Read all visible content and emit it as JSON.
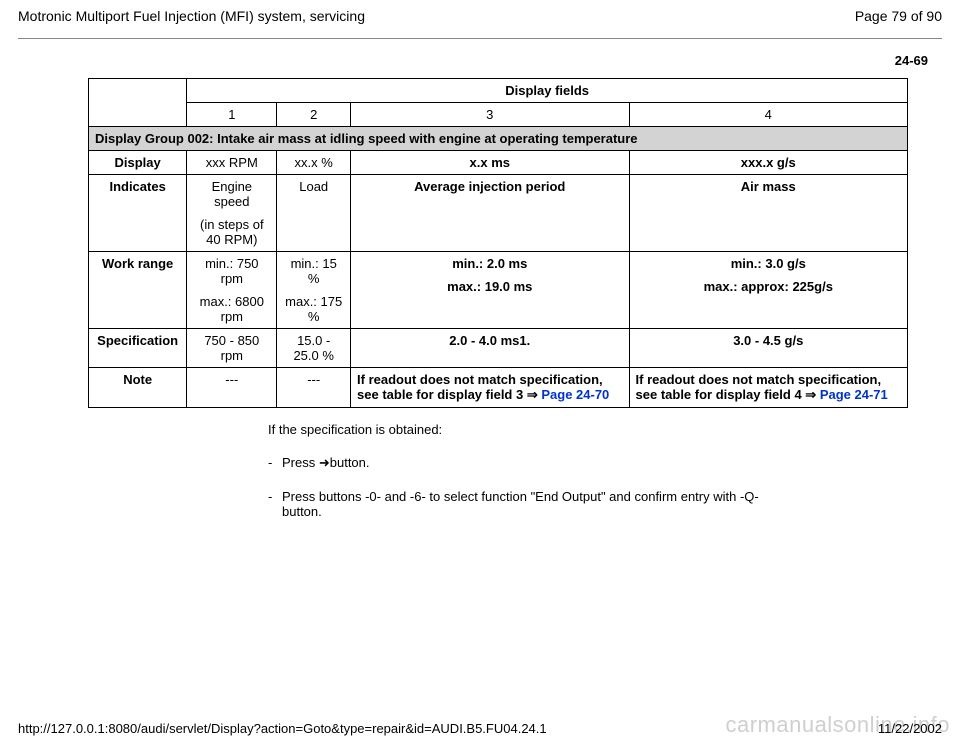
{
  "header": {
    "title": "Motronic Multiport Fuel Injection (MFI) system, servicing",
    "page_label": "Page 79 of 90"
  },
  "section_number": "24-69",
  "table": {
    "display_fields_header": "Display fields",
    "col_nums": [
      "1",
      "2",
      "3",
      "4"
    ],
    "group_title": "Display Group 002: Intake air mass at idling speed with engine at operating temperature",
    "rows": {
      "display": {
        "label": "Display",
        "c1": "xxx RPM",
        "c2": "xx.x %",
        "c3": "x.x ms",
        "c4": "xxx.x g/s"
      },
      "indicates": {
        "label": "Indicates",
        "c1a": "Engine speed",
        "c1b": "(in steps of 40 RPM)",
        "c2": "Load",
        "c3": "Average injection period",
        "c4": "Air mass"
      },
      "work_range": {
        "label": "Work range",
        "c1a": "min.: 750 rpm",
        "c1b": "max.: 6800 rpm",
        "c2a": "min.: 15 %",
        "c2b": "max.: 175 %",
        "c3a": "min.: 2.0 ms",
        "c3b": "max.: 19.0 ms",
        "c4a": "min.: 3.0 g/s",
        "c4b": "max.: approx: 225g/s"
      },
      "specification": {
        "label": "Specification",
        "c1": "750 - 850 rpm",
        "c2": "15.0 - 25.0 %",
        "c3": "2.0 - 4.0 ms1.",
        "c4": "3.0 - 4.5 g/s"
      },
      "note": {
        "label": "Note",
        "c1": "---",
        "c2": "---",
        "c3_text": "If readout does not match specification, see table for display field 3  ",
        "c3_link": "Page 24-70",
        "c4_text": "If readout does not match specification, see table for display field 4  ",
        "c4_link": "Page 24-71"
      }
    }
  },
  "after": {
    "line1": "If the specification is obtained:",
    "bullet1": "Press button.",
    "bullet2": "Press buttons -0- and -6- to select function \"End Output\" and confirm entry with -Q- button."
  },
  "footer": {
    "url": "http://127.0.0.1:8080/audi/servlet/Display?action=Goto&type=repair&id=AUDI.B5.FU04.24.1",
    "date": "11/22/2002"
  },
  "watermark": "carmanualsonline.info",
  "glyphs": {
    "right_arrow_double": "⇒",
    "right_arrow_solid": "➜"
  },
  "style": {
    "link_color": "#0033cc",
    "group_bg": "#d3d3d3",
    "rule_color": "#888888",
    "watermark_color": "#cfcfcf"
  }
}
